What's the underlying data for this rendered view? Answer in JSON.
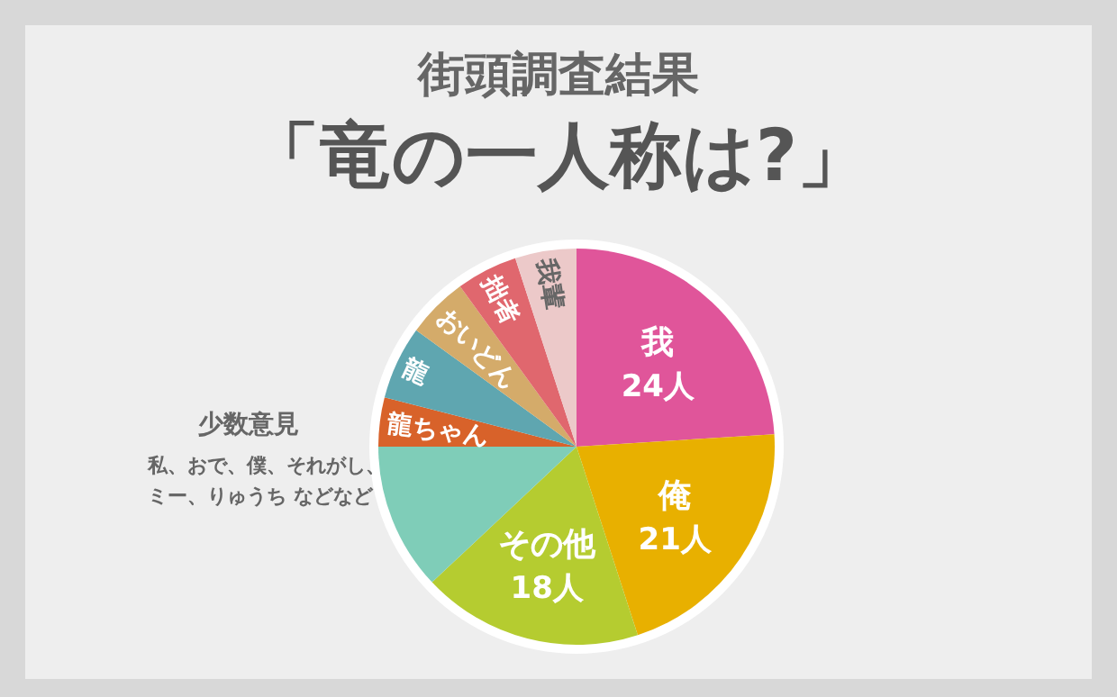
{
  "chart_data": {
    "type": "pie",
    "title": "街頭調査結果",
    "subtitle": "「竜の一人称は?」",
    "categories": [
      "我",
      "俺",
      "その他",
      "少数意見",
      "龍ちゃん",
      "龍",
      "おいどん",
      "拙者",
      "我輩"
    ],
    "values": [
      24,
      21,
      18,
      12,
      4,
      6,
      5,
      5,
      5
    ],
    "value_labels": [
      "24人",
      "21人",
      "18人",
      null,
      null,
      null,
      null,
      null,
      null
    ],
    "colors": [
      "#e0559a",
      "#e8b000",
      "#b5cc30",
      "#7fcdb8",
      "#d8622a",
      "#5fa6b0",
      "#d4ab6a",
      "#e0676e",
      "#ecc9c9"
    ],
    "annotations": [
      "私、おで、僕、それがし、",
      "ミー、りゅうち などなど"
    ]
  }
}
